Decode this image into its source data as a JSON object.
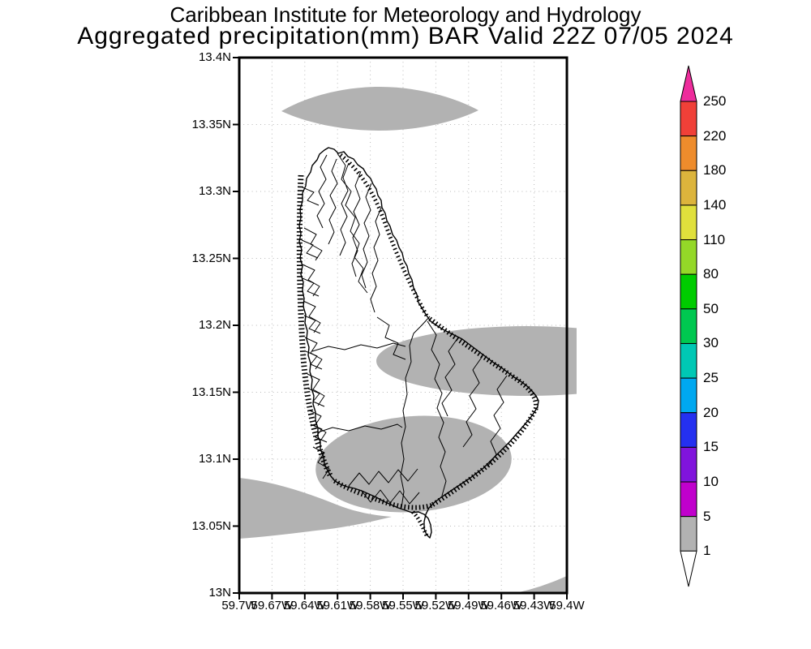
{
  "header": {
    "title_line1": "Caribbean Institute for Meteorology and Hydrology",
    "title_line2": "Aggregated precipitation(mm) BAR Valid 22Z 07/05 2024"
  },
  "map": {
    "lat_ticks": [
      "13.4N",
      "13.35N",
      "13.3N",
      "13.25N",
      "13.2N",
      "13.15N",
      "13.1N",
      "13.05N",
      "13N"
    ],
    "lon_ticks": [
      "59.7W",
      "59.67W",
      "59.64W",
      "59.61W",
      "59.58W",
      "59.55W",
      "59.52W",
      "59.49W",
      "59.46W",
      "59.43W",
      "59.4W"
    ],
    "shade_color": "#b2b2b2",
    "shade_value_range_mm": [
      1,
      5
    ],
    "grid_color": "#b8b8b8",
    "frame_color": "#000000"
  },
  "colorbar": {
    "levels": [
      1,
      5,
      10,
      15,
      20,
      25,
      30,
      50,
      80,
      110,
      140,
      180,
      220,
      250
    ],
    "colors": [
      "#ffffff",
      "#b2b2b2",
      "#c000cc",
      "#8014dc",
      "#2430f0",
      "#00a8f0",
      "#00c8b4",
      "#00c850",
      "#00cc00",
      "#94d828",
      "#e0e03c",
      "#dcb43c",
      "#ee8c2c",
      "#f04038",
      "#ee2c9c"
    ]
  }
}
